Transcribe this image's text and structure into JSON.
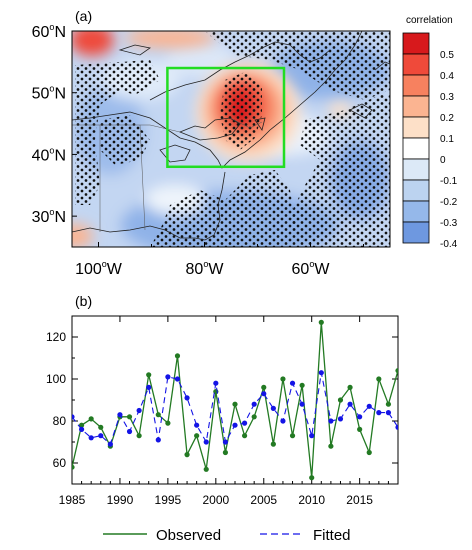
{
  "chart_data": [
    {
      "type": "heatmap",
      "panel_label": "(a)",
      "colorbar_title": "correlation",
      "colorbar_levels": [
        "0.5",
        "0.4",
        "0.3",
        "0.2",
        "0.1",
        "0",
        "-0.1",
        "-0.2",
        "-0.3",
        "-0.4"
      ],
      "colorbar_colors": [
        "#d7191c",
        "#ef4a3a",
        "#f7815f",
        "#fbb491",
        "#fde0c8",
        "#ffffff",
        "#dce9f7",
        "#bcd3f0",
        "#95b8ea",
        "#6e98e0"
      ],
      "lat_ticks": [
        "60",
        "50",
        "40",
        "30"
      ],
      "lat_unit": "N",
      "lon_ticks": [
        "100",
        "80",
        "60"
      ],
      "lon_unit": "W",
      "lon_range": [
        -105,
        -45
      ],
      "lat_range": [
        25,
        60
      ],
      "box": {
        "lon": [
          -87,
          -65
        ],
        "lat": [
          38,
          54
        ],
        "color": "#22dd22"
      },
      "description_features": "correlation map with hatched (dotted) significance"
    },
    {
      "type": "line",
      "panel_label": "(b)",
      "x": [
        1985,
        1986,
        1987,
        1988,
        1989,
        1990,
        1991,
        1992,
        1993,
        1994,
        1995,
        1996,
        1997,
        1998,
        1999,
        2000,
        2001,
        2002,
        2003,
        2004,
        2005,
        2006,
        2007,
        2008,
        2009,
        2010,
        2011,
        2012,
        2013,
        2014,
        2015,
        2016,
        2017,
        2018,
        2019
      ],
      "series": [
        {
          "name": "Observed",
          "color": "#237a23",
          "values": [
            58,
            78,
            81,
            77,
            68,
            82,
            82,
            73,
            102,
            83,
            79,
            111,
            64,
            73,
            57,
            94,
            65,
            88,
            73,
            82,
            96,
            69,
            100,
            73,
            97,
            53,
            127,
            68,
            90,
            96,
            76,
            65,
            100,
            88,
            104
          ]
        },
        {
          "name": "Fitted",
          "color": "#1414e6",
          "values": [
            82,
            76,
            72,
            73,
            69,
            83,
            75,
            85,
            96,
            71,
            101,
            100,
            91,
            78,
            70,
            98,
            70,
            78,
            79,
            88,
            93,
            86,
            80,
            98,
            88,
            73,
            103,
            80,
            81,
            88,
            82,
            87,
            84,
            84,
            77
          ]
        }
      ],
      "xticks": [
        1985,
        1990,
        1995,
        2000,
        2005,
        2010,
        2015
      ],
      "yticks": [
        60,
        80,
        100,
        120
      ],
      "xlim": [
        1985,
        2019
      ],
      "ylim": [
        50,
        130
      ]
    }
  ],
  "legend": {
    "observed_label": "Observed",
    "fitted_label": "Fitted"
  }
}
